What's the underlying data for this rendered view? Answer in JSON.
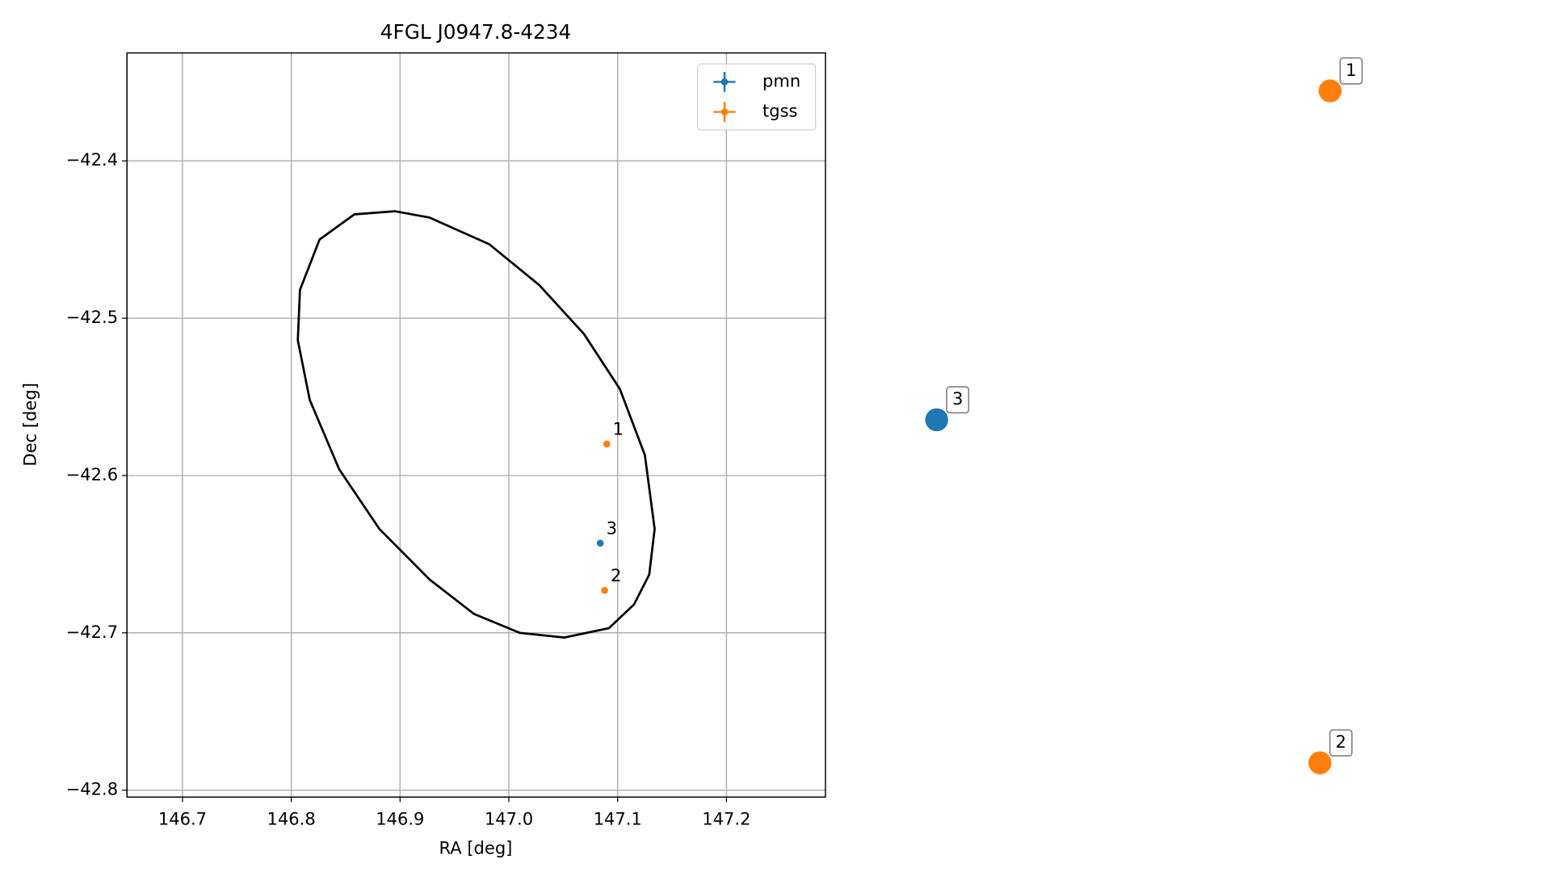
{
  "chart_data": [
    {
      "type": "scatter",
      "title": "4FGL J0947.8-4234",
      "xlabel": "RA [deg]",
      "ylabel": "Dec [deg]",
      "xlim": [
        146.649,
        147.291
      ],
      "ylim": [
        -42.8044,
        -42.3314
      ],
      "xticks": [
        146.7,
        146.8,
        146.9,
        {
          "value": 147,
          "label": "147.0"
        },
        147.1,
        147.2
      ],
      "yticks": [
        {
          "value": -42.8,
          "label": "−42.8"
        },
        {
          "value": -42.7,
          "label": "−42.7"
        },
        {
          "value": -42.6,
          "label": "−42.6"
        },
        {
          "value": -42.5,
          "label": "−42.5"
        },
        {
          "value": -42.4,
          "label": "−42.4"
        }
      ],
      "grid": true,
      "legend": "upper right",
      "axis_visible": true,
      "series": [
        {
          "name": "pmn",
          "color": "#1f77b4",
          "x": [
            147.084
          ],
          "y": [
            -42.643
          ],
          "labels": [
            "3"
          ]
        },
        {
          "name": "tgss",
          "color": "#ff7f0e",
          "x": [
            147.09,
            147.088
          ],
          "y": [
            -42.58,
            -42.673
          ],
          "labels": [
            "1",
            "2"
          ]
        }
      ],
      "ellipse": {
        "color": "#000000",
        "x": [
          146.895,
          146.927,
          146.982,
          147.028,
          147.069,
          147.102,
          147.125,
          147.134,
          147.129,
          147.115,
          147.092,
          147.051,
          147.01,
          146.968,
          146.927,
          146.881,
          146.844,
          146.817,
          146.806,
          146.808,
          146.826,
          146.858
        ],
        "y": [
          -42.432,
          -42.436,
          -42.453,
          -42.479,
          -42.51,
          -42.545,
          -42.587,
          -42.634,
          -42.663,
          -42.682,
          -42.697,
          -42.703,
          -42.7,
          -42.688,
          -42.666,
          -42.634,
          -42.596,
          -42.552,
          -42.514,
          -42.482,
          -42.45,
          -42.434
        ]
      }
    },
    {
      "type": "scatter",
      "axis_visible": false,
      "xlim": [
        0,
        1
      ],
      "ylim": [
        0,
        1
      ],
      "series": [
        {
          "color": "#1f77b4",
          "x": [
            0.099
          ],
          "y": [
            0.507
          ],
          "labels": [
            "3"
          ]
        },
        {
          "color": "#ff7f0e",
          "x": [
            0.678,
            0.663
          ],
          "y": [
            0.949,
            0.046
          ],
          "labels": [
            "1",
            "2"
          ]
        }
      ]
    }
  ]
}
